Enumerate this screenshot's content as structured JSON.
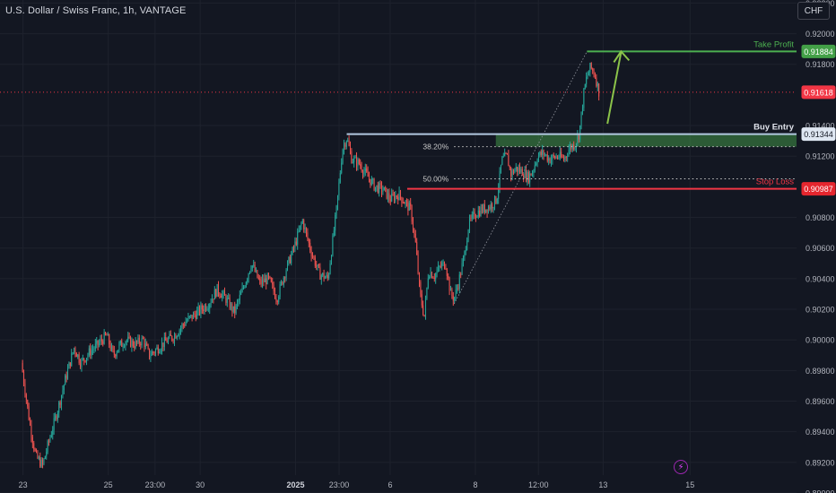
{
  "header": {
    "title": "U.S. Dollar / Swiss Franc, 1h, VANTAGE"
  },
  "toolbar": {
    "currency_label": "CHF"
  },
  "icons": {
    "events": "lightning-bolt-icon"
  },
  "colors": {
    "background": "#131722",
    "up": "#26a69a",
    "down": "#ef5350",
    "take_profit": "#4caf50",
    "stop_loss": "#f23645",
    "entry": "#b2c8e0",
    "last_price": "#f23645",
    "zone": "#4caf50",
    "grid": "#1e222d",
    "axis_text": "#b2b5be"
  },
  "chart_data": {
    "type": "candlestick",
    "title": "U.S. Dollar / Swiss Franc, 1h, VANTAGE",
    "ylim": [
      0.89,
      0.9222
    ],
    "y_ticks": [
      "0.92200",
      "0.92000",
      "0.91800",
      "0.91400",
      "0.91200",
      "0.90800",
      "0.90600",
      "0.90400",
      "0.90200",
      "0.90000",
      "0.89800",
      "0.89600",
      "0.89400",
      "0.89200",
      "0.89000"
    ],
    "x_ticks": [
      "23",
      "25",
      "23:00",
      "30",
      "2025",
      "23:00",
      "6",
      "8",
      "12:00",
      "13",
      "15"
    ],
    "x_tick_positions": [
      0.2,
      10.2,
      15.7,
      21.0,
      32.2,
      37.3,
      43.3,
      53.3,
      60.7,
      68.3,
      78.5
    ],
    "x_range": [
      -2.5,
      91
    ],
    "price_path": [
      [
        0,
        0.8985
      ],
      [
        1,
        0.8945
      ],
      [
        1.7,
        0.8924
      ],
      [
        2.5,
        0.8918
      ],
      [
        3.3,
        0.8935
      ],
      [
        4.3,
        0.8955
      ],
      [
        5.2,
        0.8975
      ],
      [
        6.2,
        0.8995
      ],
      [
        7,
        0.8985
      ],
      [
        8,
        0.8992
      ],
      [
        9,
        0.8997
      ],
      [
        10,
        0.9003
      ],
      [
        10.8,
        0.899
      ],
      [
        11.5,
        0.8996
      ],
      [
        12.3,
        0.9
      ],
      [
        13.3,
        0.8997
      ],
      [
        14.3,
        0.9
      ],
      [
        15,
        0.899
      ],
      [
        15.7,
        0.8993
      ],
      [
        16.7,
        0.8998
      ],
      [
        18,
        0.9003
      ],
      [
        19.3,
        0.9012
      ],
      [
        20.7,
        0.9018
      ],
      [
        22,
        0.9024
      ],
      [
        23,
        0.9033
      ],
      [
        24,
        0.9027
      ],
      [
        25,
        0.9018
      ],
      [
        26,
        0.9033
      ],
      [
        27,
        0.905
      ],
      [
        28,
        0.9037
      ],
      [
        29,
        0.904
      ],
      [
        30,
        0.9027
      ],
      [
        31,
        0.9045
      ],
      [
        32,
        0.906
      ],
      [
        33,
        0.9078
      ],
      [
        34,
        0.9058
      ],
      [
        35,
        0.9043
      ],
      [
        36,
        0.904
      ],
      [
        37,
        0.9085
      ],
      [
        37.7,
        0.9125
      ],
      [
        38.2,
        0.9132
      ],
      [
        38.8,
        0.9118
      ],
      [
        39.7,
        0.9115
      ],
      [
        40.5,
        0.9108
      ],
      [
        41.5,
        0.91
      ],
      [
        42.5,
        0.9098
      ],
      [
        43.3,
        0.9092
      ],
      [
        44.3,
        0.9095
      ],
      [
        45,
        0.909
      ],
      [
        45.7,
        0.9085
      ],
      [
        46.3,
        0.9062
      ],
      [
        46.8,
        0.903
      ],
      [
        47.3,
        0.9015
      ],
      [
        47.8,
        0.9045
      ],
      [
        48.5,
        0.9042
      ],
      [
        49.2,
        0.9048
      ],
      [
        49.8,
        0.905
      ],
      [
        50.4,
        0.903
      ],
      [
        50.8,
        0.9027
      ],
      [
        51.3,
        0.9037
      ],
      [
        52,
        0.9055
      ],
      [
        52.5,
        0.9075
      ],
      [
        53.2,
        0.9082
      ],
      [
        54,
        0.9085
      ],
      [
        55,
        0.9087
      ],
      [
        55.8,
        0.9092
      ],
      [
        56.4,
        0.9117
      ],
      [
        57,
        0.912
      ],
      [
        57.5,
        0.9108
      ],
      [
        58,
        0.9112
      ],
      [
        58.8,
        0.911
      ],
      [
        59.5,
        0.9106
      ],
      [
        60,
        0.911
      ],
      [
        60.6,
        0.912
      ],
      [
        61.3,
        0.9122
      ],
      [
        62,
        0.9118
      ],
      [
        63,
        0.912
      ],
      [
        63.7,
        0.9118
      ],
      [
        64.3,
        0.9125
      ],
      [
        65,
        0.9128
      ],
      [
        65.5,
        0.9135
      ],
      [
        66,
        0.916
      ],
      [
        66.3,
        0.917
      ],
      [
        66.8,
        0.9178
      ],
      [
        67.3,
        0.9174
      ],
      [
        67.8,
        0.9162
      ]
    ],
    "last_price": 0.91618,
    "levels": [
      {
        "label": "Take Profit",
        "price": 0.91884,
        "value_label": "0.91884",
        "x_from": 66.4
      },
      {
        "label": "Buy Entry",
        "price": 0.91344,
        "value_label": "0.91344",
        "x_from": 38.2
      },
      {
        "label": "Stop Loss",
        "price": 0.90987,
        "value_label": "0.90987",
        "x_from": 45.3
      }
    ],
    "last_price_label": "0.91618",
    "fib_levels": [
      {
        "label": "38.20%",
        "price": 0.91262
      },
      {
        "label": "50.00%",
        "price": 0.91052
      }
    ],
    "fib_x_range": [
      50.8,
      91
    ],
    "entry_zone": {
      "from": 0.91262,
      "to": 0.91344,
      "x_from": 55.7
    },
    "swing_line": {
      "from": [
        50.8,
        0.90235
      ],
      "to": [
        66.4,
        0.91884
      ]
    },
    "arrow": {
      "from": [
        68.8,
        0.91412
      ],
      "to": [
        70.4,
        0.91884
      ]
    },
    "candles": 460,
    "seed": 7
  }
}
